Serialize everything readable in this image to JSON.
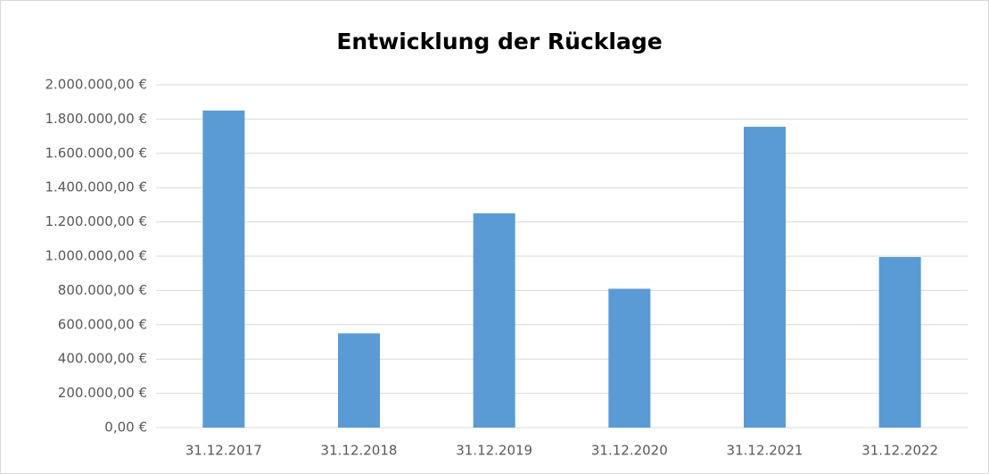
{
  "chart_data": {
    "type": "bar",
    "title": "Entwicklung der Rücklage",
    "categories": [
      "31.12.2017",
      "31.12.2018",
      "31.12.2019",
      "31.12.2020",
      "31.12.2021",
      "31.12.2022"
    ],
    "values": [
      1850000,
      550000,
      1250000,
      810000,
      1755000,
      995000
    ],
    "color": "#5b9bd5",
    "ylim": [
      0,
      2000000
    ],
    "yticks": [
      {
        "value": 0,
        "label": "0,00 €"
      },
      {
        "value": 200000,
        "label": "200.000,00 €"
      },
      {
        "value": 400000,
        "label": "400.000,00 €"
      },
      {
        "value": 600000,
        "label": "600.000,00 €"
      },
      {
        "value": 800000,
        "label": "800.000,00 €"
      },
      {
        "value": 1000000,
        "label": "1.000.000,00 €"
      },
      {
        "value": 1200000,
        "label": "1.200.000,00 €"
      },
      {
        "value": 1400000,
        "label": "1.400.000,00 €"
      },
      {
        "value": 1600000,
        "label": "1.600.000,00 €"
      },
      {
        "value": 1800000,
        "label": "1.800.000,00 €"
      },
      {
        "value": 2000000,
        "label": "2.000.000,00 €"
      }
    ],
    "grid": true
  }
}
